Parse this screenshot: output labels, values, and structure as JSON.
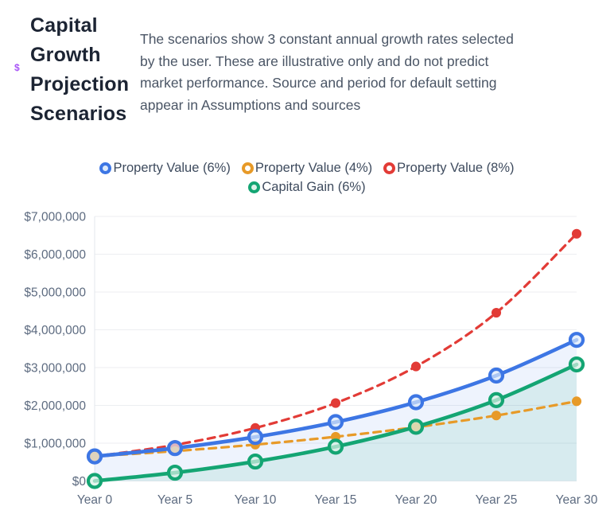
{
  "decorations": {
    "stray_glyph": "$"
  },
  "header": {
    "title": "Capital Growth Projection Scenarios",
    "description_lines": [
      "The scenarios show 3 constant annual growth rates selected",
      "by the user. These are illustrative only and do not predict",
      "market performance. Source and period for default setting",
      "appear in Assumptions and sources"
    ]
  },
  "chart_data": {
    "type": "line",
    "title": "",
    "xlabel": "",
    "ylabel": "",
    "x": [
      0,
      5,
      10,
      15,
      20,
      25,
      30
    ],
    "x_tick_labels": [
      "Year 0",
      "Year 5",
      "Year 10",
      "Year 15",
      "Year 20",
      "Year 25",
      "Year 30"
    ],
    "ylim": [
      0,
      7000000
    ],
    "y_ticks": [
      0,
      1000000,
      2000000,
      3000000,
      4000000,
      5000000,
      6000000,
      7000000
    ],
    "y_tick_labels": [
      "$0",
      "$1,000,000",
      "$2,000,000",
      "$3,000,000",
      "$4,000,000",
      "$5,000,000",
      "$6,000,000",
      "$7,000,000"
    ],
    "grid": "horizontal",
    "legend_position": "top",
    "colors": {
      "grid_line": "#ECEEF1",
      "axis_line": "#E3E7EC",
      "axis_text": "#5D6B80",
      "legend_text": "#3E4B5E"
    },
    "series": [
      {
        "name": "Property Value (6%)",
        "color": "#3D76E4",
        "line": "solid",
        "marker": "ring",
        "marker_fill": "#DCE9FB",
        "legend_fill": "#DDEAFB",
        "area_fill": "rgba(61,118,228,0.09)",
        "values": [
          650000,
          869847,
          1164051,
          1557763,
          2084638,
          2789716,
          3733269
        ]
      },
      {
        "name": "Property Value (4%)",
        "color": "#E79A28",
        "line": "dashed",
        "marker": "dot",
        "marker_fill": "#E79A28",
        "legend_fill": "#FFFFFF",
        "area_fill": null,
        "values": [
          650000,
          790824,
          962159,
          1170613,
          1424230,
          1732794,
          2108208
        ]
      },
      {
        "name": "Property Value (8%)",
        "color": "#E23B36",
        "line": "dashed",
        "marker": "dot",
        "marker_fill": "#E23B36",
        "legend_fill": "#FFFFFF",
        "area_fill": null,
        "values": [
          650000,
          955063,
          1403301,
          2061910,
          3029622,
          4451509,
          6540727
        ]
      },
      {
        "name": "Capital Gain (6%)",
        "color": "#14A573",
        "line": "solid",
        "marker": "ring",
        "marker_fill": "#D9F1E6",
        "legend_fill": "#DCF2E8",
        "area_fill": "rgba(20,165,115,0.10)",
        "values": [
          0,
          219847,
          514051,
          907763,
          1434638,
          2139716,
          3083269
        ]
      }
    ],
    "draw_order": [
      2,
      1,
      0,
      3
    ]
  }
}
